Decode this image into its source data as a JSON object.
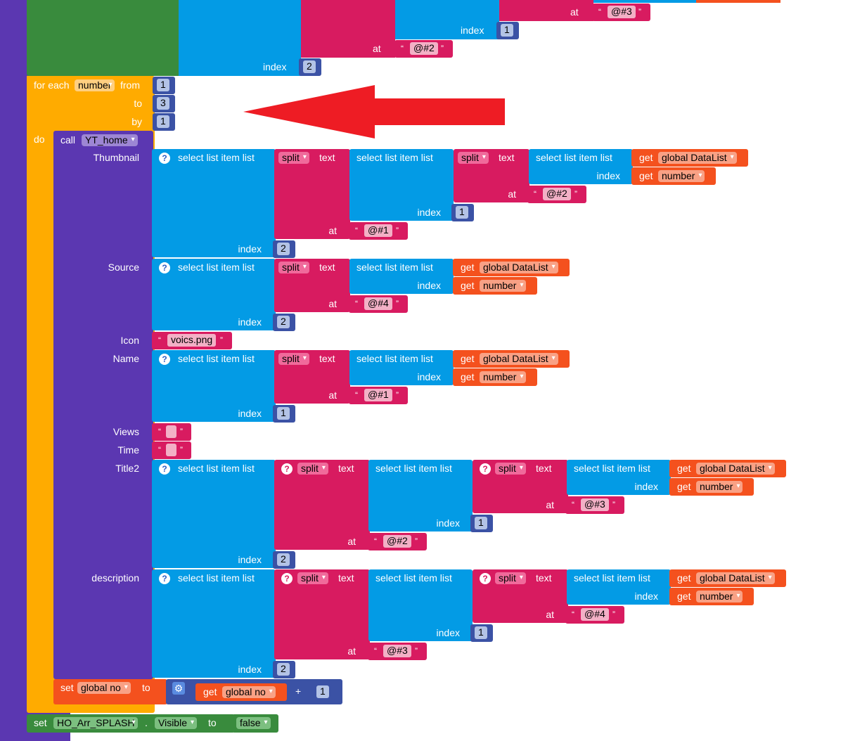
{
  "colors": {
    "procedure": "#5b37b1",
    "control": "#ffab00",
    "list": "#039be5",
    "text": "#d81b60",
    "variable": "#f4511e",
    "math": "#3b52a5",
    "logic": "#398b3d",
    "arrow": "#ee1c24"
  },
  "labels": {
    "for_each": "for each",
    "from": "from",
    "to": "to",
    "by": "by",
    "do": "do",
    "call": "call",
    "select_list_item_list": "select list item  list",
    "index": "index",
    "split": "split",
    "text": "text",
    "at": "at",
    "get": "get",
    "set": "set",
    "plus": "+",
    "dot": ".",
    "open_quote": "“",
    "close_quote": "”"
  },
  "loop": {
    "variable": "number",
    "from": "1",
    "to": "3",
    "by": "1"
  },
  "top_blocks": {
    "at_value_a": "@#3",
    "index_value_a": "1",
    "at_value_b": "@#2",
    "index_value_b": "2"
  },
  "call": {
    "procedure": "YT_home",
    "params": [
      "Thumbnail",
      "Source",
      "Icon",
      "Name",
      "Views",
      "Time",
      "Title2",
      "description"
    ]
  },
  "thumbnail": {
    "at_inner": "@#2",
    "index_inner": "1",
    "at_outer": "@#1",
    "index_outer": "2"
  },
  "source": {
    "at": "@#4",
    "index": "2"
  },
  "icon": {
    "value": "voics.png"
  },
  "name": {
    "at": "@#1",
    "index": "1"
  },
  "views": {
    "value": ""
  },
  "time": {
    "value": ""
  },
  "title2": {
    "at_inner": "@#3",
    "index_mid": "1",
    "at_mid": "@#2",
    "index_outer": "2"
  },
  "description": {
    "at_inner": "@#4",
    "index_mid": "1",
    "at_mid": "@#3",
    "index_outer": "2"
  },
  "vars": {
    "global_datalist": "global DataList",
    "number": "number",
    "global_no": "global no"
  },
  "set_no": {
    "addend": "1"
  },
  "set_visible": {
    "component": "HO_Arr_SPLASH",
    "property": "Visible",
    "value": "false"
  }
}
